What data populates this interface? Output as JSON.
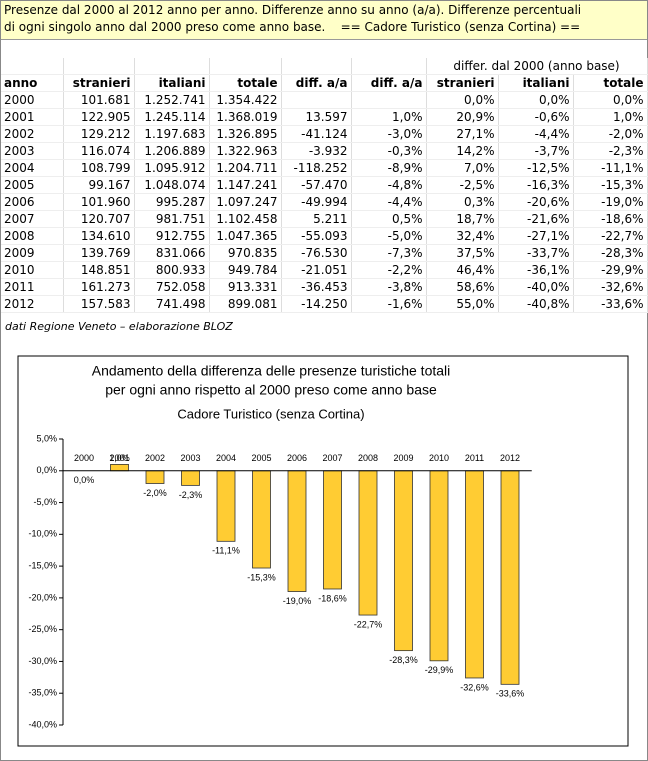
{
  "header": {
    "lines": [
      "Presenze dal 2000 al 2012 anno per anno. Differenze anno su anno (a/a). Differenze percentuali",
      "di ogni singolo anno dal 2000 preso come anno base.    == Cadore Turistico (senza Cortina) =="
    ]
  },
  "table": {
    "group_header": "differ. dal 2000 (anno base)",
    "columns": [
      "anno",
      "stranieri",
      "italiani",
      "totale",
      "diff. a/a",
      "diff. a/a",
      "stranieri",
      "italiani",
      "totale"
    ],
    "rows": [
      [
        "2000",
        "101.681",
        "1.252.741",
        "1.354.422",
        null,
        null,
        "0,0%",
        "0,0%",
        "0,0%"
      ],
      [
        "2001",
        "122.905",
        "1.245.114",
        "1.368.019",
        "13.597",
        "1,0%",
        "20,9%",
        "-0,6%",
        "1,0%"
      ],
      [
        "2002",
        "129.212",
        "1.197.683",
        "1.326.895",
        "-41.124",
        "-3,0%",
        "27,1%",
        "-4,4%",
        "-2,0%"
      ],
      [
        "2003",
        "116.074",
        "1.206.889",
        "1.322.963",
        "-3.932",
        "-0,3%",
        "14,2%",
        "-3,7%",
        "-2,3%"
      ],
      [
        "2004",
        "108.799",
        "1.095.912",
        "1.204.711",
        "-118.252",
        "-8,9%",
        "7,0%",
        "-12,5%",
        "-11,1%"
      ],
      [
        "2005",
        "99.167",
        "1.048.074",
        "1.147.241",
        "-57.470",
        "-4,8%",
        "-2,5%",
        "-16,3%",
        "-15,3%"
      ],
      [
        "2006",
        "101.960",
        "995.287",
        "1.097.247",
        "-49.994",
        "-4,4%",
        "0,3%",
        "-20,6%",
        "-19,0%"
      ],
      [
        "2007",
        "120.707",
        "981.751",
        "1.102.458",
        "5.211",
        "0,5%",
        "18,7%",
        "-21,6%",
        "-18,6%"
      ],
      [
        "2008",
        "134.610",
        "912.755",
        "1.047.365",
        "-55.093",
        "-5,0%",
        "32,4%",
        "-27,1%",
        "-22,7%"
      ],
      [
        "2009",
        "139.769",
        "831.066",
        "970.835",
        "-76.530",
        "-7,3%",
        "37,5%",
        "-33,7%",
        "-28,3%"
      ],
      [
        "2010",
        "148.851",
        "800.933",
        "949.784",
        "-21.051",
        "-2,2%",
        "46,4%",
        "-36,1%",
        "-29,9%"
      ],
      [
        "2011",
        "161.273",
        "752.058",
        "913.331",
        "-36.453",
        "-3,8%",
        "58,6%",
        "-40,0%",
        "-32,6%"
      ],
      [
        "2012",
        "157.583",
        "741.498",
        "899.081",
        "-14.250",
        "-1,6%",
        "55,0%",
        "-40,8%",
        "-33,6%"
      ]
    ]
  },
  "source": "dati Regione Veneto – elaborazione BLOZ",
  "chart_data": {
    "type": "bar",
    "title": [
      "Andamento della differenza delle presenze turistiche totali",
      "per ogni anno rispetto al 2000 preso come anno base"
    ],
    "subtitle": "Cadore Turistico (senza Cortina)",
    "categories": [
      "2000",
      "2001",
      "2002",
      "2003",
      "2004",
      "2005",
      "2006",
      "2007",
      "2008",
      "2009",
      "2010",
      "2011",
      "2012"
    ],
    "values": [
      0.0,
      1.0,
      -2.0,
      -2.3,
      -11.1,
      -15.3,
      -19.0,
      -18.6,
      -22.7,
      -28.3,
      -29.9,
      -32.6,
      -33.6
    ],
    "value_labels": [
      "0,0%",
      "1,0%",
      "-2,0%",
      "-2,3%",
      "-11,1%",
      "-15,3%",
      "-19,0%",
      "-18,6%",
      "-22,7%",
      "-28,3%",
      "-29,9%",
      "-32,6%",
      "-33,6%"
    ],
    "color": "#ffcc33",
    "ylim": [
      -40,
      5
    ],
    "yticks": [
      {
        "value": 5,
        "label": "5,0%"
      },
      {
        "value": 0,
        "label": "0,0%"
      },
      {
        "value": -5,
        "label": "-5,0%"
      },
      {
        "value": -10,
        "label": "-10,0%"
      },
      {
        "value": -15,
        "label": "-15,0%"
      },
      {
        "value": -20,
        "label": "-20,0%"
      },
      {
        "value": -25,
        "label": "-25,0%"
      },
      {
        "value": -30,
        "label": "-30,0%"
      },
      {
        "value": -35,
        "label": "-35,0%"
      },
      {
        "value": -40,
        "label": "-40,0%"
      }
    ]
  }
}
